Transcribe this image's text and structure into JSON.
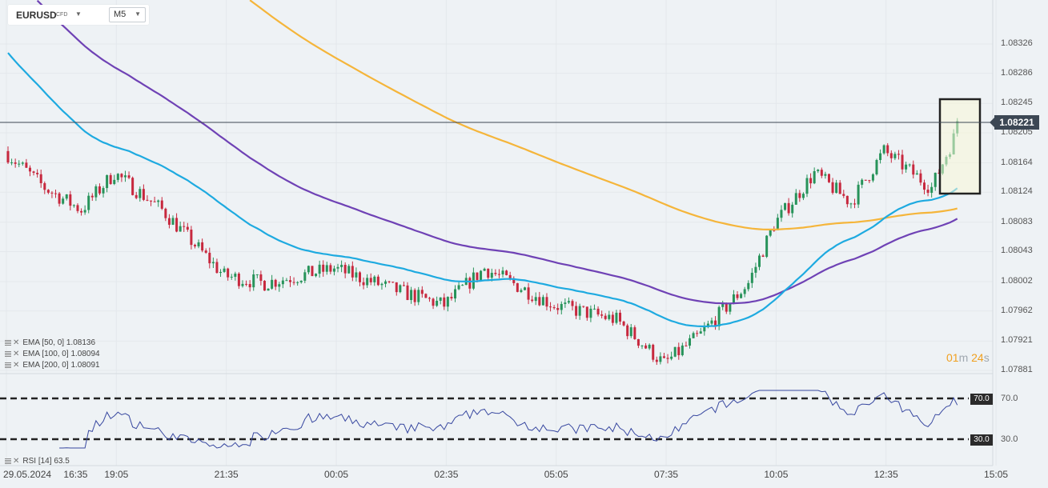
{
  "header": {
    "symbol": "EURUSD",
    "symbol_type": "CFD",
    "timeframe": "M5"
  },
  "price_axis": [
    "1.08326",
    "1.08286",
    "1.08245",
    "1.08205",
    "1.08164",
    "1.08124",
    "1.08083",
    "1.08043",
    "1.08002",
    "1.07962",
    "1.07921",
    "1.07881"
  ],
  "current_price": "1.08221",
  "time_axis": {
    "date": "29.05.2024",
    "labels": [
      "16:35",
      "19:05",
      "21:35",
      "00:05",
      "02:35",
      "05:05",
      "07:35",
      "10:05",
      "12:35",
      "15:05"
    ]
  },
  "indicators": {
    "ema50": {
      "label": "EMA [50, 0]",
      "value": "1.08136",
      "color": "#1eaae0"
    },
    "ema100": {
      "label": "EMA [100, 0]",
      "value": "1.08094",
      "color": "#6f42b5"
    },
    "ema200": {
      "label": "EMA [200, 0]",
      "value": "1.08091",
      "color": "#f5b53a"
    }
  },
  "rsi": {
    "label": "RSI [14]",
    "value": "63.5",
    "upper": "70.0",
    "lower": "30.0",
    "color": "#3848a0"
  },
  "countdown": {
    "min": "01",
    "min_unit": "m",
    "sec": "24",
    "sec_unit": "s"
  },
  "colors": {
    "bull": "#27935a",
    "bear": "#c7283e",
    "background": "#eef2f5",
    "highlight_box": "#222222"
  },
  "chart_data": {
    "type": "candlestick",
    "symbol": "EURUSD",
    "timeframe": "M5",
    "ylim": [
      1.07862,
      1.08383
    ],
    "price_path_keypoints": [
      {
        "x": "16:35",
        "y": 1.0818
      },
      {
        "x": "17:30",
        "y": 1.0813
      },
      {
        "x": "18:20",
        "y": 1.081
      },
      {
        "x": "19:05",
        "y": 1.0815
      },
      {
        "x": "20:10",
        "y": 1.081
      },
      {
        "x": "21:35",
        "y": 1.0801
      },
      {
        "x": "22:30",
        "y": 1.08
      },
      {
        "x": "00:05",
        "y": 1.0802
      },
      {
        "x": "01:30",
        "y": 1.0799
      },
      {
        "x": "02:35",
        "y": 1.0797
      },
      {
        "x": "03:30",
        "y": 1.0802
      },
      {
        "x": "05:05",
        "y": 1.0797
      },
      {
        "x": "06:30",
        "y": 1.0795
      },
      {
        "x": "07:35",
        "y": 1.0789
      },
      {
        "x": "08:25",
        "y": 1.0793
      },
      {
        "x": "09:30",
        "y": 1.08
      },
      {
        "x": "10:05",
        "y": 1.0808
      },
      {
        "x": "11:00",
        "y": 1.0815
      },
      {
        "x": "11:50",
        "y": 1.0811
      },
      {
        "x": "12:35",
        "y": 1.0818
      },
      {
        "x": "13:40",
        "y": 1.0813
      },
      {
        "x": "14:20",
        "y": 1.0822
      }
    ],
    "series": [
      {
        "name": "EMA [50, 0]",
        "last": 1.08136
      },
      {
        "name": "EMA [100, 0]",
        "last": 1.08094
      },
      {
        "name": "EMA [200, 0]",
        "last": 1.08091
      },
      {
        "name": "RSI [14]",
        "last": 63.5
      }
    ]
  }
}
